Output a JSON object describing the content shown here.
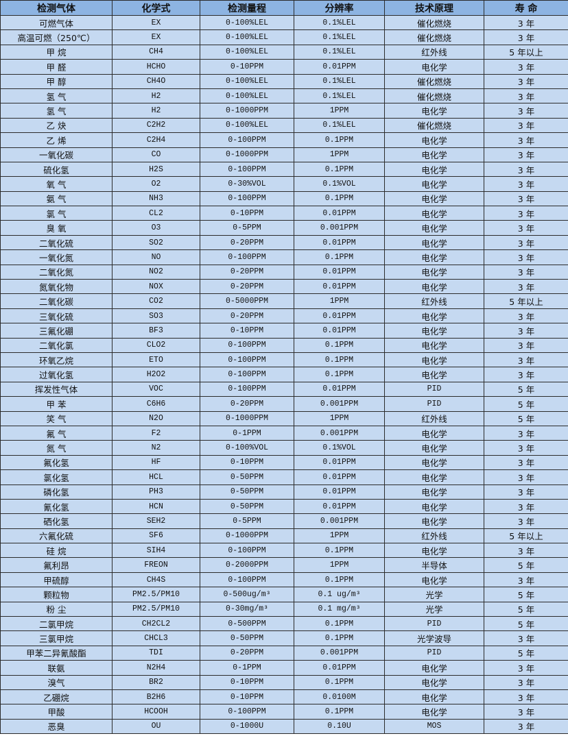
{
  "colors": {
    "header_bg": "#8db4e2",
    "row_bg": "#c5d9f1",
    "border": "#2b2b2b"
  },
  "headers": [
    "检测气体",
    "化学式",
    "检测量程",
    "分辨率",
    "技术原理",
    "寿 命"
  ],
  "rows": [
    [
      "可燃气体",
      "EX",
      "0-100%LEL",
      "0.1%LEL",
      "催化燃烧",
      "3 年"
    ],
    [
      "高温可燃（250℃）",
      "EX",
      "0-100%LEL",
      "0.1%LEL",
      "催化燃烧",
      "3 年"
    ],
    [
      "甲 烷",
      "CH4",
      "0-100%LEL",
      "0.1%LEL",
      "红外线",
      "5 年以上"
    ],
    [
      "甲 醛",
      "HCHO",
      "0-10PPM",
      "0.01PPM",
      "电化学",
      "3 年"
    ],
    [
      "甲 醇",
      "CH4O",
      "0-100%LEL",
      "0.1%LEL",
      "催化燃烧",
      "3 年"
    ],
    [
      "氢 气",
      "H2",
      "0-100%LEL",
      "0.1%LEL",
      "催化燃烧",
      "3 年"
    ],
    [
      "氢 气",
      "H2",
      "0-1000PPM",
      "1PPM",
      "电化学",
      "3 年"
    ],
    [
      "乙 炔",
      "C2H2",
      "0-100%LEL",
      "0.1%LEL",
      "催化燃烧",
      "3 年"
    ],
    [
      "乙 烯",
      "C2H4",
      "0-100PPM",
      "0.1PPM",
      "电化学",
      "3 年"
    ],
    [
      "一氧化碳",
      "CO",
      "0-1000PPM",
      "1PPM",
      "电化学",
      "3 年"
    ],
    [
      "硫化氢",
      "H2S",
      "0-100PPM",
      "0.1PPM",
      "电化学",
      "3 年"
    ],
    [
      "氧 气",
      "O2",
      "0-30%VOL",
      "0.1%VOL",
      "电化学",
      "3 年"
    ],
    [
      "氨 气",
      "NH3",
      "0-100PPM",
      "0.1PPM",
      "电化学",
      "3 年"
    ],
    [
      "氯 气",
      "CL2",
      "0-10PPM",
      "0.01PPM",
      "电化学",
      "3 年"
    ],
    [
      "臭 氧",
      "O3",
      "0-5PPM",
      "0.001PPM",
      "电化学",
      "3 年"
    ],
    [
      "二氧化硫",
      "SO2",
      "0-20PPM",
      "0.01PPM",
      "电化学",
      "3 年"
    ],
    [
      "一氧化氮",
      "NO",
      "0-100PPM",
      "0.1PPM",
      "电化学",
      "3 年"
    ],
    [
      "二氧化氮",
      "NO2",
      "0-20PPM",
      "0.01PPM",
      "电化学",
      "3 年"
    ],
    [
      "氮氧化物",
      "NOX",
      "0-20PPM",
      "0.01PPM",
      "电化学",
      "3 年"
    ],
    [
      "二氧化碳",
      "CO2",
      "0-5000PPM",
      "1PPM",
      "红外线",
      "5 年以上"
    ],
    [
      "三氧化硫",
      "SO3",
      "0-20PPM",
      "0.01PPM",
      "电化学",
      "3 年"
    ],
    [
      "三氟化硼",
      "BF3",
      "0-10PPM",
      "0.01PPM",
      "电化学",
      "3 年"
    ],
    [
      "二氧化氯",
      "CLO2",
      "0-100PPM",
      "0.1PPM",
      "电化学",
      "3 年"
    ],
    [
      "环氧乙烷",
      "ETO",
      "0-100PPM",
      "0.1PPM",
      "电化学",
      "3 年"
    ],
    [
      "过氧化氢",
      "H2O2",
      "0-100PPM",
      "0.1PPM",
      "电化学",
      "3 年"
    ],
    [
      "挥发性气体",
      "VOC",
      "0-100PPM",
      "0.01PPM",
      "PID",
      "5 年"
    ],
    [
      "甲 苯",
      "C6H6",
      "0-20PPM",
      "0.001PPM",
      "PID",
      "5 年"
    ],
    [
      "笑 气",
      "N2O",
      "0-1000PPM",
      "1PPM",
      "红外线",
      "5 年"
    ],
    [
      "氟 气",
      "F2",
      "0-1PPM",
      "0.001PPM",
      "电化学",
      "3 年"
    ],
    [
      "氮 气",
      "N2",
      "0-100%VOL",
      "0.1%VOL",
      "电化学",
      "3 年"
    ],
    [
      "氟化氢",
      "HF",
      "0-10PPM",
      "0.01PPM",
      "电化学",
      "3 年"
    ],
    [
      "氯化氢",
      "HCL",
      "0-50PPM",
      "0.01PPM",
      "电化学",
      "3 年"
    ],
    [
      "磷化氢",
      "PH3",
      "0-50PPM",
      "0.01PPM",
      "电化学",
      "3 年"
    ],
    [
      "氰化氢",
      "HCN",
      "0-50PPM",
      "0.01PPM",
      "电化学",
      "3 年"
    ],
    [
      "硒化氢",
      "SEH2",
      "0-5PPM",
      "0.001PPM",
      "电化学",
      "3 年"
    ],
    [
      "六氟化硫",
      "SF6",
      "0-1000PPM",
      "1PPM",
      "红外线",
      "5 年以上"
    ],
    [
      "硅 烷",
      "SIH4",
      "0-100PPM",
      "0.1PPM",
      "电化学",
      "3 年"
    ],
    [
      "氟利昂",
      "FREON",
      "0-2000PPM",
      "1PPM",
      "半导体",
      "5 年"
    ],
    [
      "甲硫醇",
      "CH4S",
      "0-100PPM",
      "0.1PPM",
      "电化学",
      "3 年"
    ],
    [
      "颗粒物",
      "PM2.5/PM10",
      "0-500ug/m³",
      "0.1 ug/m³",
      "光学",
      "5 年"
    ],
    [
      "粉 尘",
      "PM2.5/PM10",
      "0-30mg/m³",
      "0.1 mg/m³",
      "光学",
      "5 年"
    ],
    [
      "二氯甲烷",
      "CH2CL2",
      "0-500PPM",
      "0.1PPM",
      "PID",
      "5 年"
    ],
    [
      "三氯甲烷",
      "CHCL3",
      "0-50PPM",
      "0.1PPM",
      "光学波导",
      "3 年"
    ],
    [
      "甲苯二异氰酸酯",
      "TDI",
      "0-20PPM",
      "0.001PPM",
      "PID",
      "5 年"
    ],
    [
      "联氨",
      "N2H4",
      "0-1PPM",
      "0.01PPM",
      "电化学",
      "3 年"
    ],
    [
      "溴气",
      "BR2",
      "0-10PPM",
      "0.1PPM",
      "电化学",
      "3 年"
    ],
    [
      "乙硼烷",
      "B2H6",
      "0-10PPM",
      "0.0100M",
      "电化学",
      "3 年"
    ],
    [
      "甲酸",
      "HCOOH",
      "0-100PPM",
      "0.1PPM",
      "电化学",
      "3 年"
    ],
    [
      "恶臭",
      "OU",
      "0-1000U",
      "0.10U",
      "MOS",
      "3 年"
    ]
  ]
}
